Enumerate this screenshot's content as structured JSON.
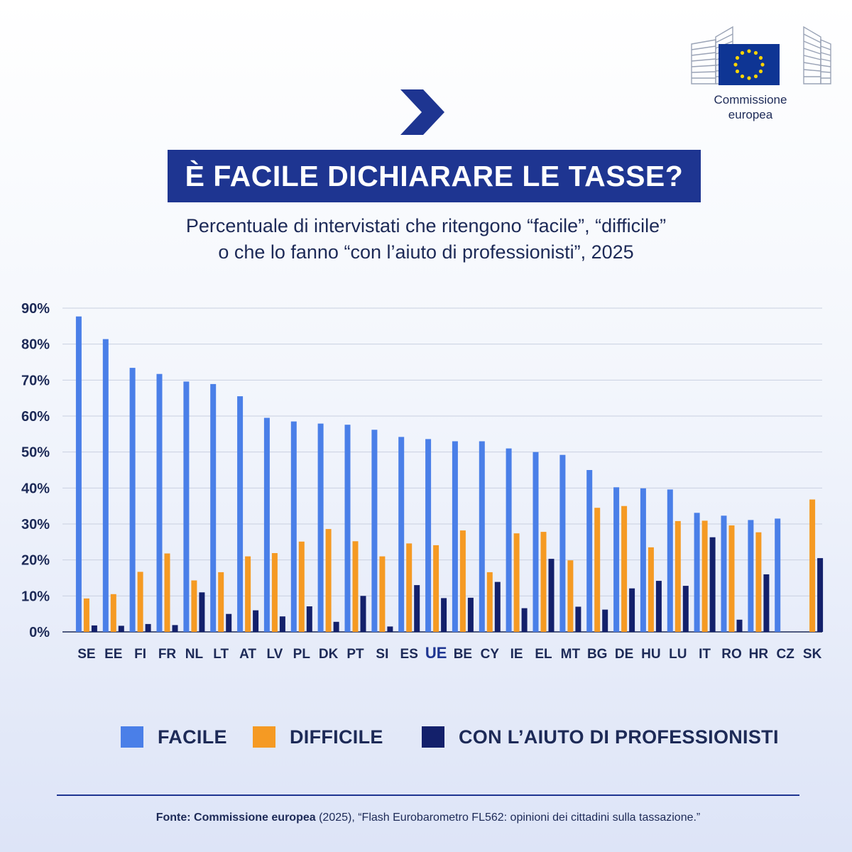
{
  "logo": {
    "line1": "Commissione",
    "line2": "europea",
    "icon": "eu-flag-building-icon"
  },
  "header": {
    "chevron_icon": "chevron-right-icon",
    "title": "È FACILE DICHIARARE LE TASSE?",
    "subtitle_line1": "Percentuale di intervistati che ritengono “facile”, “difficile”",
    "subtitle_line2": "o che lo fanno “con l’aiuto di professionisti”, 2025"
  },
  "colors": {
    "facile": "#4a7fe8",
    "difficile": "#f59a23",
    "professionisti": "#13206b",
    "title_bg": "#1e3591",
    "highlight_label": "#1e3591"
  },
  "chart_data": {
    "type": "bar",
    "title": "È FACILE DICHIARARE LE TASSE?",
    "ylim": [
      0,
      90
    ],
    "yticks": [
      0,
      10,
      20,
      30,
      40,
      50,
      60,
      70,
      80,
      90
    ],
    "ytick_labels": [
      "0%",
      "10%",
      "20%",
      "30%",
      "40%",
      "50%",
      "60%",
      "70%",
      "80%",
      "90%"
    ],
    "grid": true,
    "legend_position": "bottom",
    "highlight_category": "UE",
    "categories": [
      "SE",
      "EE",
      "FI",
      "FR",
      "NL",
      "LT",
      "AT",
      "LV",
      "PL",
      "DK",
      "PT",
      "SI",
      "ES",
      "UE",
      "BE",
      "CY",
      "IE",
      "EL",
      "MT",
      "BG",
      "DE",
      "HU",
      "LU",
      "IT",
      "RO",
      "HR",
      "CZ",
      "SK"
    ],
    "series": [
      {
        "name": "FACILE",
        "color": "#4a7fe8",
        "values": [
          87.7,
          81.4,
          73.4,
          71.7,
          69.6,
          68.9,
          65.5,
          59.5,
          58.5,
          57.9,
          57.6,
          56.2,
          54.2,
          53.6,
          53,
          53,
          51,
          50,
          49.2,
          45,
          40.2,
          39.9,
          39.6,
          33.1,
          32.3,
          31.1,
          31.5,
          0
        ]
      },
      {
        "name": "DIFFICILE",
        "color": "#f59a23",
        "values": [
          9.3,
          10.5,
          16.7,
          21.8,
          14.3,
          16.6,
          21,
          21.9,
          25.1,
          28.6,
          25.2,
          21,
          24.6,
          24.1,
          28.2,
          16.6,
          27.4,
          27.8,
          19.9,
          34.5,
          35,
          23.5,
          30.8,
          30.9,
          29.6,
          27.7,
          0,
          36.8
        ]
      },
      {
        "name": "CON L’AIUTO DI PROFESSIONISTI",
        "color": "#13206b",
        "values": [
          1.8,
          1.7,
          2.2,
          1.9,
          11,
          5,
          6,
          4.3,
          7.1,
          2.8,
          10,
          1.5,
          13,
          9.4,
          9.5,
          13.9,
          6.6,
          20.3,
          7,
          6.2,
          12.1,
          14.2,
          12.8,
          26.3,
          3.4,
          16,
          0,
          20.5
        ]
      }
    ]
  },
  "legend": {
    "facile": "FACILE",
    "difficile": "DIFFICILE",
    "professionisti": "CON L’AIUTO DI PROFESSIONISTI"
  },
  "source": {
    "label": "Fonte: Commissione europea",
    "text": " (2025), “Flash Eurobarometro FL562: opinioni dei cittadini sulla tassazione.”"
  }
}
